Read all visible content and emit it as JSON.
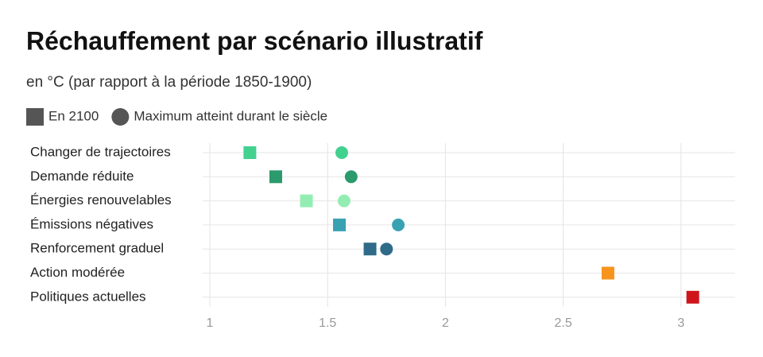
{
  "chart_data": {
    "type": "dot",
    "title": "Réchauffement par scénario illustratif",
    "subtitle": "en °C (par rapport à la période 1850-1900)",
    "categories": [
      "Changer de trajectoires",
      "Demande réduite",
      "Énergies renouvelables",
      "Émissions négatives",
      "Renforcement graduel",
      "Action modérée",
      "Politiques actuelles"
    ],
    "colors": [
      "#42d18f",
      "#2b9a6c",
      "#93edb3",
      "#38a2b2",
      "#2f6b88",
      "#f7941d",
      "#d0141c"
    ],
    "series": [
      {
        "name": "En 2100",
        "color": "#555555",
        "marker": "square",
        "values": [
          1.17,
          1.28,
          1.41,
          1.55,
          1.68,
          2.69,
          3.05
        ]
      },
      {
        "name": "Maximum atteint durant le siècle",
        "color": "#555555",
        "marker": "circle",
        "values": [
          1.56,
          1.6,
          1.57,
          1.8,
          1.75,
          null,
          null
        ]
      }
    ],
    "xlim": [
      1,
      3.23
    ],
    "xticks": [
      1,
      1.5,
      2,
      2.5,
      3
    ],
    "grid": true
  }
}
